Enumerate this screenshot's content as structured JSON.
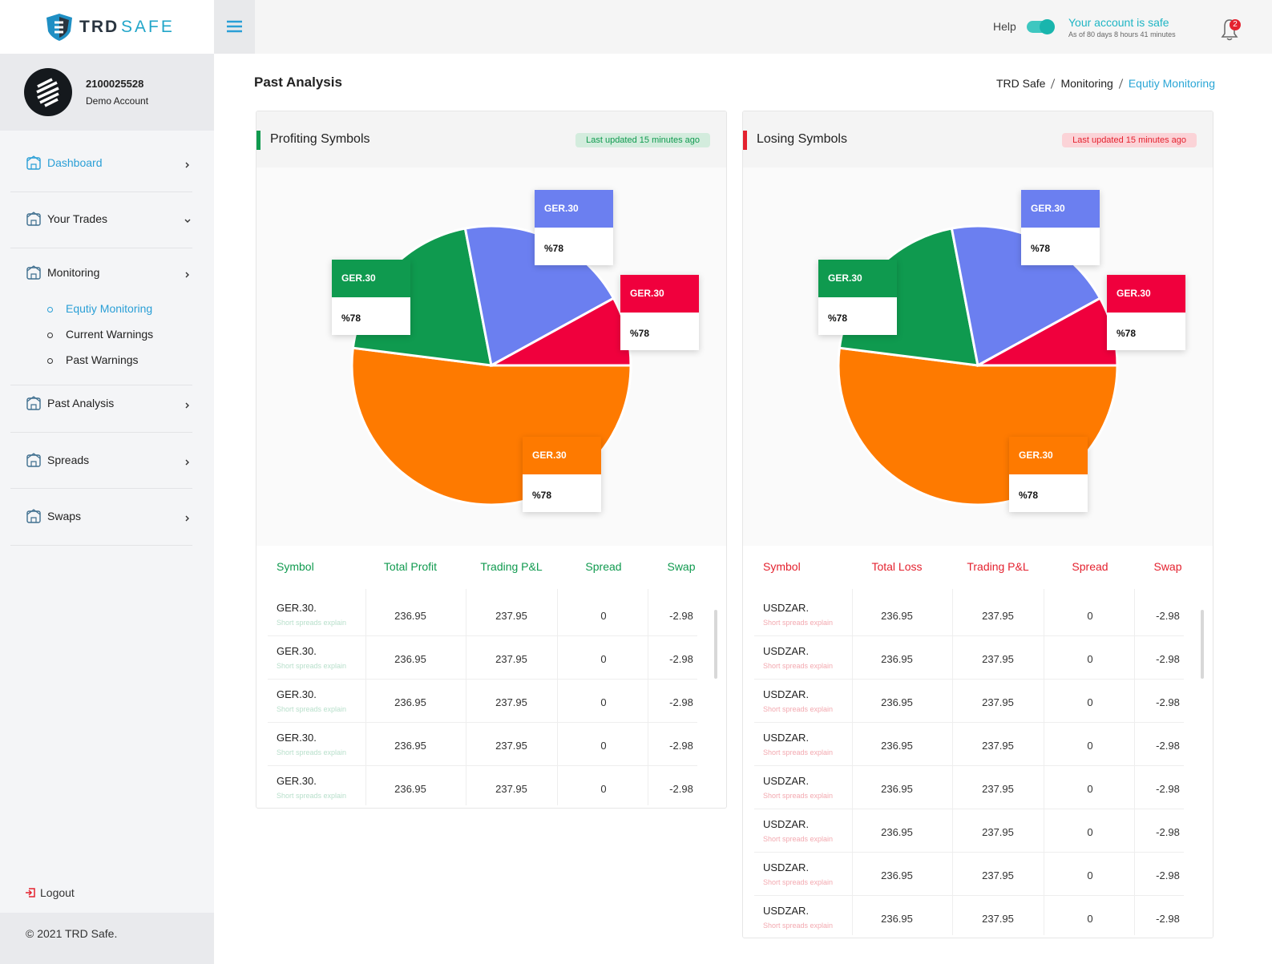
{
  "logo": {
    "brand_a": "TRD",
    "brand_b": "SAFE"
  },
  "header": {
    "help": "Help",
    "status": "Your account is safe",
    "status_detail": "As of 80 days 8 hours 41 minutes",
    "notifications": 2
  },
  "account": {
    "number": "2100025528",
    "type": "Demo Account"
  },
  "menu": [
    {
      "label": "Dashboard"
    },
    {
      "label": "Your Trades"
    },
    {
      "label": "Monitoring",
      "children": [
        "Equtiy Monitoring",
        "Current Warnings",
        "Past Warnings"
      ]
    },
    {
      "label": "Past Analysis"
    },
    {
      "label": "Spreads"
    },
    {
      "label": "Swaps"
    }
  ],
  "logout": "Logout",
  "footer": "© 2021 TRD Safe.",
  "page": {
    "title": "Past Analysis",
    "breadcrumb": [
      "TRD Safe",
      "Monitoring",
      "Equtiy Monitoring"
    ]
  },
  "panels": [
    {
      "title": "Profiting Symbols",
      "updated": "Last updated 15 minutes ago",
      "color": "#109a4f",
      "chart_data": {
        "type": "pie",
        "values": [
          52,
          20,
          20,
          8
        ],
        "colors": [
          "#fe7a00",
          "#0f9a4f",
          "#6b7ff0",
          "#f0003d"
        ]
      },
      "callouts": [
        {
          "title": "GER.30",
          "text": "%78"
        },
        {
          "title": "GER.30",
          "text": "%78"
        },
        {
          "title": "GER.30",
          "text": "%78"
        },
        {
          "title": "GER.30",
          "text": "%78"
        }
      ],
      "table": {
        "columns": [
          "Symbol",
          "Total Profit",
          "Trading P&L",
          "Spread",
          "Swap"
        ],
        "rows": [
          {
            "symbol": "GER.30.",
            "note": "Short spreads explain",
            "cells": [
              236.95,
              237.95,
              0,
              -2.98
            ]
          },
          {
            "symbol": "GER.30.",
            "note": "Short spreads explain",
            "cells": [
              236.95,
              237.95,
              0,
              -2.98
            ]
          },
          {
            "symbol": "GER.30.",
            "note": "Short spreads explain",
            "cells": [
              236.95,
              237.95,
              0,
              -2.98
            ]
          },
          {
            "symbol": "GER.30.",
            "note": "Short spreads explain",
            "cells": [
              236.95,
              237.95,
              0,
              -2.98
            ]
          },
          {
            "symbol": "GER.30.",
            "note": "Short spreads explain",
            "cells": [
              236.95,
              237.95,
              0,
              -2.98
            ]
          }
        ]
      }
    },
    {
      "title": "Losing Symbols",
      "updated": "Last updated 15 minutes ago",
      "color": "#e4222f",
      "chart_data": {
        "type": "pie",
        "values": [
          52,
          20,
          20,
          8
        ],
        "colors": [
          "#fe7a00",
          "#0f9a4f",
          "#6b7ff0",
          "#f0003d"
        ]
      },
      "callouts": [
        {
          "title": "GER.30",
          "text": "%78"
        },
        {
          "title": "GER.30",
          "text": "%78"
        },
        {
          "title": "GER.30",
          "text": "%78"
        },
        {
          "title": "GER.30",
          "text": "%78"
        }
      ],
      "table": {
        "columns": [
          "Symbol",
          "Total Loss",
          "Trading P&L",
          "Spread",
          "Swap"
        ],
        "rows": [
          {
            "symbol": "USDZAR.",
            "note": "Short spreads explain",
            "cells": [
              236.95,
              237.95,
              0,
              -2.98
            ]
          },
          {
            "symbol": "USDZAR.",
            "note": "Short spreads explain",
            "cells": [
              236.95,
              237.95,
              0,
              -2.98
            ]
          },
          {
            "symbol": "USDZAR.",
            "note": "Short spreads explain",
            "cells": [
              236.95,
              237.95,
              0,
              -2.98
            ]
          },
          {
            "symbol": "USDZAR.",
            "note": "Short spreads explain",
            "cells": [
              236.95,
              237.95,
              0,
              -2.98
            ]
          },
          {
            "symbol": "USDZAR.",
            "note": "Short spreads explain",
            "cells": [
              236.95,
              237.95,
              0,
              -2.98
            ]
          },
          {
            "symbol": "USDZAR.",
            "note": "Short spreads explain",
            "cells": [
              236.95,
              237.95,
              0,
              -2.98
            ]
          },
          {
            "symbol": "USDZAR.",
            "note": "Short spreads explain",
            "cells": [
              236.95,
              237.95,
              0,
              -2.98
            ]
          },
          {
            "symbol": "USDZAR.",
            "note": "Short spreads explain",
            "cells": [
              236.95,
              237.95,
              0,
              -2.98
            ]
          }
        ]
      }
    }
  ]
}
